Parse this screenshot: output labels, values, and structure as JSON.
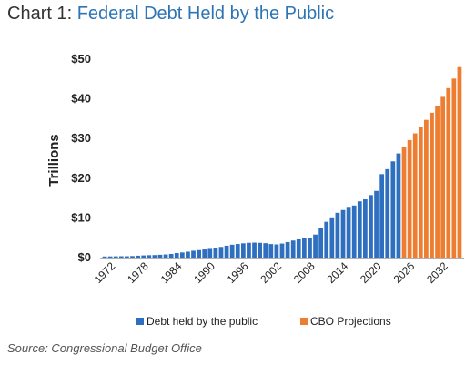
{
  "title_prefix": "Chart 1:",
  "title_main": "Federal Debt Held by the Public",
  "source": "Source: Congressional Budget Office",
  "colors": {
    "actual": "#2e6fbf",
    "projection": "#ed7d31",
    "title_accent": "#2e75b6",
    "axis": "#b0b0b0"
  },
  "chart_data": {
    "type": "bar",
    "title": "Federal Debt Held by the Public",
    "ylabel": "Trillions",
    "xlabel": "",
    "ylim": [
      0,
      50
    ],
    "y_ticks": [
      "$0",
      "$10",
      "$20",
      "$30",
      "$40",
      "$50"
    ],
    "x_tick_labels": [
      "1972",
      "1978",
      "1984",
      "1990",
      "1996",
      "2002",
      "2008",
      "2014",
      "2020",
      "2026",
      "2032"
    ],
    "grid": false,
    "legend_position": "bottom",
    "categories": [
      1970,
      1971,
      1972,
      1973,
      1974,
      1975,
      1976,
      1977,
      1978,
      1979,
      1980,
      1981,
      1982,
      1983,
      1984,
      1985,
      1986,
      1987,
      1988,
      1989,
      1990,
      1991,
      1992,
      1993,
      1994,
      1995,
      1996,
      1997,
      1998,
      1999,
      2000,
      2001,
      2002,
      2003,
      2004,
      2005,
      2006,
      2007,
      2008,
      2009,
      2010,
      2011,
      2012,
      2013,
      2014,
      2015,
      2016,
      2017,
      2018,
      2019,
      2020,
      2021,
      2022,
      2023,
      2024,
      2025,
      2026,
      2027,
      2028,
      2029,
      2030,
      2031,
      2032,
      2033,
      2034
    ],
    "series": [
      {
        "name": "Debt held by the public",
        "values": [
          0.28,
          0.3,
          0.32,
          0.34,
          0.34,
          0.39,
          0.48,
          0.55,
          0.61,
          0.64,
          0.71,
          0.79,
          0.92,
          1.14,
          1.3,
          1.5,
          1.74,
          1.89,
          2.05,
          2.19,
          2.41,
          2.69,
          3.0,
          3.25,
          3.43,
          3.6,
          3.73,
          3.77,
          3.72,
          3.63,
          3.41,
          3.32,
          3.54,
          3.91,
          4.3,
          4.59,
          4.83,
          5.04,
          5.8,
          7.54,
          9.02,
          10.13,
          11.28,
          11.98,
          12.78,
          13.12,
          14.17,
          14.67,
          15.75,
          16.8,
          21.02,
          22.28,
          24.25,
          26.24,
          null,
          null,
          null,
          null,
          null,
          null,
          null,
          null,
          null,
          null,
          null
        ]
      },
      {
        "name": "CBO Projections",
        "values": [
          null,
          null,
          null,
          null,
          null,
          null,
          null,
          null,
          null,
          null,
          null,
          null,
          null,
          null,
          null,
          null,
          null,
          null,
          null,
          null,
          null,
          null,
          null,
          null,
          null,
          null,
          null,
          null,
          null,
          null,
          null,
          null,
          null,
          null,
          null,
          null,
          null,
          null,
          null,
          null,
          null,
          null,
          null,
          null,
          null,
          null,
          null,
          null,
          null,
          null,
          null,
          null,
          null,
          null,
          27.9,
          29.6,
          31.3,
          33.0,
          34.7,
          36.5,
          38.3,
          40.5,
          42.7,
          45.1,
          48.0
        ]
      }
    ]
  }
}
